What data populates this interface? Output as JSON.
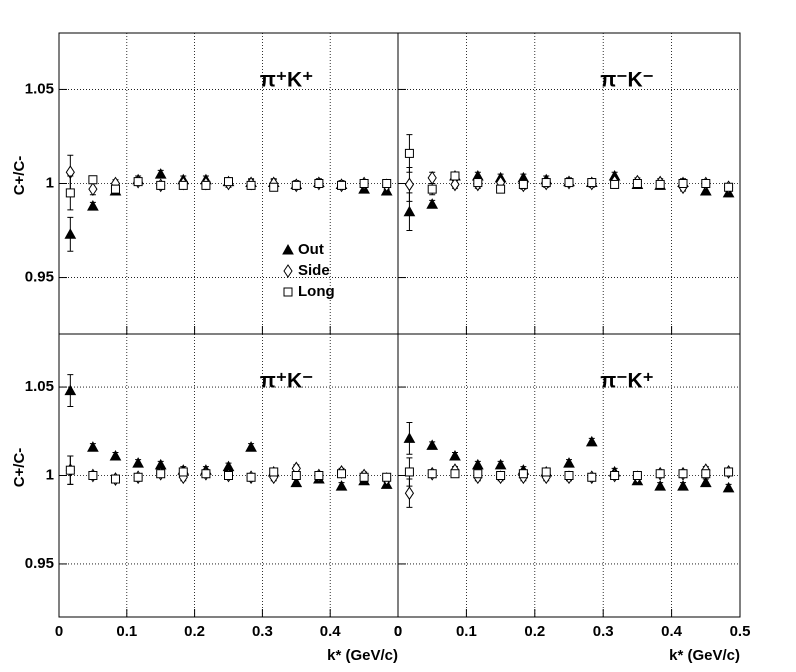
{
  "chart_data": [
    {
      "type": "scatter",
      "title": "π⁺K⁺",
      "ylabel": "C+/C-",
      "x": [
        0.0167,
        0.05,
        0.0833,
        0.1167,
        0.15,
        0.1833,
        0.2167,
        0.25,
        0.2833,
        0.3167,
        0.35,
        0.3833,
        0.4167,
        0.45,
        0.4833
      ],
      "series": [
        {
          "name": "Out",
          "marker": "triangle",
          "color": "#000000",
          "values": [
            0.973,
            0.988,
            0.996,
            1.002,
            1.005,
            1.002,
            1.002,
            1.001,
            1.0005,
            1.0005,
            0.9995,
            1.0005,
            0.9995,
            0.997,
            0.996
          ],
          "errors": [
            0.009,
            0.002,
            0.002,
            0.002,
            0.002,
            0.002,
            0.002,
            0.002,
            0.002,
            0.002,
            0.002,
            0.002,
            0.002,
            0.002,
            0.002
          ]
        },
        {
          "name": "Side",
          "marker": "diamond",
          "color": "#000000",
          "values": [
            1.006,
            0.997,
            1.0,
            1.001,
            0.999,
            1.0,
            1.0,
            1.0,
            1.0,
            1.0,
            0.999,
            1.0,
            0.999,
            1.0,
            0.999
          ],
          "errors": [
            0.009,
            0.003,
            0.002,
            0.002,
            0.002,
            0.002,
            0.002,
            0.002,
            0.002,
            0.002,
            0.002,
            0.002,
            0.002,
            0.002,
            0.002
          ]
        },
        {
          "name": "Long",
          "marker": "square",
          "color": "#000000",
          "values": [
            0.995,
            1.002,
            0.997,
            1.001,
            0.999,
            0.999,
            0.999,
            1.001,
            0.999,
            0.998,
            0.999,
            1.0,
            0.999,
            1.0,
            1.0
          ],
          "errors": [
            0.009,
            0.002,
            0.002,
            0.002,
            0.002,
            0.002,
            0.002,
            0.002,
            0.002,
            0.002,
            0.002,
            0.002,
            0.002,
            0.002,
            0.002
          ]
        }
      ],
      "xlim": [
        0,
        0.5
      ],
      "ylim": [
        0.92,
        1.08
      ],
      "xticks": [
        0,
        0.1,
        0.2,
        0.3,
        0.4,
        0.5
      ],
      "yticks": [
        0.95,
        1,
        1.05
      ],
      "ytick_labels": true,
      "xtick_labels": false,
      "grid": true,
      "legend": true
    },
    {
      "type": "scatter",
      "title": "π⁻K⁻",
      "x": [
        0.0167,
        0.05,
        0.0833,
        0.1167,
        0.15,
        0.1833,
        0.2167,
        0.25,
        0.2833,
        0.3167,
        0.35,
        0.3833,
        0.4167,
        0.45,
        0.4833
      ],
      "series": [
        {
          "marker": "triangle",
          "color": "#000000",
          "values": [
            0.985,
            0.989,
            1.004,
            1.004,
            1.003,
            1.003,
            1.002,
            1.001,
            1.0005,
            1.004,
            0.9995,
            0.999,
            1.0005,
            0.996,
            0.995
          ],
          "errors": [
            0.01,
            0.002,
            0.002,
            0.002,
            0.002,
            0.002,
            0.002,
            0.002,
            0.002,
            0.002,
            0.002,
            0.002,
            0.002,
            0.002,
            0.002
          ]
        },
        {
          "marker": "diamond",
          "color": "#000000",
          "values": [
            0.9995,
            1.003,
            0.9995,
            0.9995,
            1.0005,
            0.999,
            1.0,
            1.0005,
            1.0,
            1.001,
            1.001,
            1.0005,
            0.998,
            1.0,
            0.998
          ],
          "errors": [
            0.009,
            0.003,
            0.002,
            0.002,
            0.002,
            0.002,
            0.002,
            0.002,
            0.002,
            0.002,
            0.002,
            0.002,
            0.002,
            0.002,
            0.002
          ]
        },
        {
          "marker": "square",
          "color": "#000000",
          "values": [
            1.016,
            0.997,
            1.004,
            1.0005,
            0.997,
            0.9995,
            1.0005,
            1.0005,
            1.0005,
            0.9995,
            1.0,
            0.9995,
            1.0,
            1.0,
            0.998
          ],
          "errors": [
            0.01,
            0.003,
            0.002,
            0.002,
            0.002,
            0.002,
            0.002,
            0.002,
            0.002,
            0.002,
            0.002,
            0.002,
            0.002,
            0.002,
            0.002
          ]
        }
      ],
      "xlim": [
        0,
        0.5
      ],
      "ylim": [
        0.92,
        1.08
      ],
      "xticks": [
        0,
        0.1,
        0.2,
        0.3,
        0.4,
        0.5
      ],
      "yticks": [
        0.95,
        1,
        1.05
      ],
      "ytick_labels": false,
      "xtick_labels": false,
      "grid": true,
      "legend": false
    },
    {
      "type": "scatter",
      "title": "π⁺K⁻",
      "ylabel": "C+/C-",
      "xlabel": "k* (GeV/c)",
      "x": [
        0.0167,
        0.05,
        0.0833,
        0.1167,
        0.15,
        0.1833,
        0.2167,
        0.25,
        0.2833,
        0.3167,
        0.35,
        0.3833,
        0.4167,
        0.45,
        0.4833
      ],
      "series": [
        {
          "marker": "triangle",
          "color": "#000000",
          "values": [
            1.048,
            1.016,
            1.011,
            1.007,
            1.006,
            1.003,
            1.003,
            1.005,
            1.016,
            1.002,
            0.996,
            0.998,
            0.994,
            0.997,
            0.995
          ],
          "errors": [
            0.009,
            0.002,
            0.002,
            0.002,
            0.002,
            0.002,
            0.002,
            0.002,
            0.002,
            0.002,
            0.002,
            0.002,
            0.002,
            0.002,
            0.002
          ]
        },
        {
          "marker": "diamond",
          "color": "#000000",
          "values": [
            1.003,
            1.0,
            0.998,
            0.999,
            1.001,
            0.999,
            1.001,
            1.0,
            0.999,
            0.999,
            1.004,
            1.0,
            1.002,
            1.0,
            0.998
          ],
          "errors": [
            0.008,
            0.002,
            0.002,
            0.002,
            0.002,
            0.002,
            0.002,
            0.002,
            0.002,
            0.002,
            0.002,
            0.002,
            0.002,
            0.002,
            0.002
          ]
        },
        {
          "marker": "square",
          "color": "#000000",
          "values": [
            1.003,
            1.0,
            0.998,
            0.999,
            1.001,
            1.002,
            1.001,
            1.0,
            0.999,
            1.002,
            1.0,
            1.0,
            1.001,
            0.999,
            0.999
          ],
          "errors": [
            0.008,
            0.002,
            0.002,
            0.002,
            0.002,
            0.002,
            0.002,
            0.002,
            0.002,
            0.002,
            0.002,
            0.002,
            0.002,
            0.002,
            0.002
          ]
        }
      ],
      "xlim": [
        0,
        0.5
      ],
      "ylim": [
        0.92,
        1.08
      ],
      "xticks": [
        0,
        0.1,
        0.2,
        0.3,
        0.4,
        {
          "value": 0.5,
          "label": "0"
        }
      ],
      "yticks": [
        0.95,
        1,
        1.05
      ],
      "ytick_labels": true,
      "xtick_labels": true,
      "grid": true,
      "legend": false
    },
    {
      "type": "scatter",
      "title": "π⁻K⁺",
      "xlabel": "k* (GeV/c)",
      "x": [
        0.0167,
        0.05,
        0.0833,
        0.1167,
        0.15,
        0.1833,
        0.2167,
        0.25,
        0.2833,
        0.3167,
        0.35,
        0.3833,
        0.4167,
        0.45,
        0.4833
      ],
      "series": [
        {
          "marker": "triangle",
          "color": "#000000",
          "values": [
            1.021,
            1.017,
            1.011,
            1.006,
            1.006,
            1.003,
            1.002,
            1.007,
            1.019,
            1.002,
            0.997,
            0.994,
            0.994,
            0.996,
            0.993
          ],
          "errors": [
            0.009,
            0.002,
            0.002,
            0.002,
            0.002,
            0.002,
            0.002,
            0.002,
            0.002,
            0.002,
            0.002,
            0.002,
            0.002,
            0.002,
            0.002
          ]
        },
        {
          "marker": "diamond",
          "color": "#000000",
          "values": [
            0.99,
            1.001,
            1.003,
            0.999,
            0.999,
            0.999,
            0.999,
            0.999,
            0.999,
            1.0,
            0.999,
            1.001,
            1.001,
            1.003,
            1.002
          ],
          "errors": [
            0.008,
            0.002,
            0.002,
            0.002,
            0.002,
            0.002,
            0.002,
            0.002,
            0.002,
            0.002,
            0.002,
            0.002,
            0.002,
            0.002,
            0.002
          ]
        },
        {
          "marker": "square",
          "color": "#000000",
          "values": [
            1.002,
            1.001,
            1.001,
            1.001,
            1.0,
            1.001,
            1.002,
            1.0,
            0.999,
            1.0,
            1.0,
            1.001,
            1.001,
            1.001,
            1.002
          ],
          "errors": [
            0.008,
            0.002,
            0.002,
            0.002,
            0.002,
            0.002,
            0.002,
            0.002,
            0.002,
            0.002,
            0.002,
            0.002,
            0.002,
            0.002,
            0.002
          ]
        }
      ],
      "xlim": [
        0,
        0.5
      ],
      "ylim": [
        0.92,
        1.08
      ],
      "xticks": [
        0,
        0.1,
        0.2,
        0.3,
        0.4,
        0.5
      ],
      "yticks": [
        0.95,
        1,
        1.05
      ],
      "ytick_labels": false,
      "xtick_labels": true,
      "grid": true,
      "legend": false
    }
  ]
}
